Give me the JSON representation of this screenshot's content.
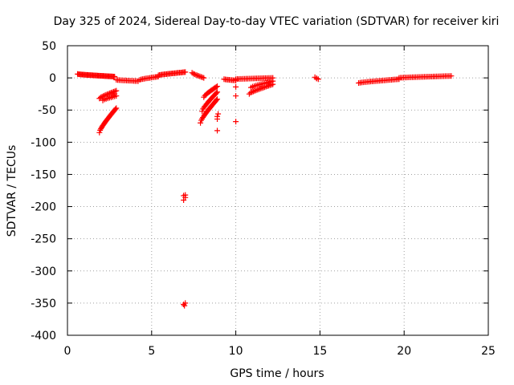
{
  "chart_data": {
    "type": "scatter",
    "title": "Day 325 of 2024, Sidereal Day-to-day VTEC variation (SDTVAR) for receiver kiri",
    "xlabel": "GPS time / hours",
    "ylabel": "SDTVAR / TECUs",
    "xlim": [
      0,
      25
    ],
    "ylim": [
      -400,
      50
    ],
    "xticks": [
      0,
      5,
      10,
      15,
      20,
      25
    ],
    "yticks": [
      50,
      0,
      -50,
      -100,
      -150,
      -200,
      -250,
      -300,
      -350,
      -400
    ],
    "grid": true,
    "marker": "plus",
    "color": "#ff0000",
    "series": [
      {
        "name": "SDTVAR",
        "segments": [
          {
            "x": [
              0.6,
              2.8
            ],
            "y": [
              6,
              2
            ],
            "n": 40
          },
          {
            "x": [
              2.9,
              4.2
            ],
            "y": [
              -3,
              -5
            ],
            "n": 16
          },
          {
            "x": [
              4.3,
              5.4
            ],
            "y": [
              -3,
              2
            ],
            "n": 14
          },
          {
            "x": [
              5.4,
              7.0
            ],
            "y": [
              4,
              9
            ],
            "n": 24
          },
          {
            "x": [
              7.4,
              8.1
            ],
            "y": [
              8,
              0
            ],
            "n": 10
          },
          {
            "x": [
              9.3,
              10.0
            ],
            "y": [
              -2,
              -4
            ],
            "n": 10
          },
          {
            "x": [
              10.0,
              12.2
            ],
            "y": [
              -2,
              0
            ],
            "n": 26
          },
          {
            "x": [
              14.7,
              14.9
            ],
            "y": [
              1,
              -2
            ],
            "n": 3
          },
          {
            "x": [
              17.3,
              19.7
            ],
            "y": [
              -8,
              -2
            ],
            "n": 28
          },
          {
            "x": [
              19.7,
              22.8
            ],
            "y": [
              0,
              3
            ],
            "n": 36
          },
          {
            "x": [
              1.9,
              2.9
            ],
            "y": [
              -85,
              -47
            ],
            "n": 26
          },
          {
            "x": [
              1.9,
              2.9
            ],
            "y": [
              -32,
              -20
            ],
            "n": 14
          },
          {
            "x": [
              2.1,
              2.9
            ],
            "y": [
              -35,
              -28
            ],
            "n": 9
          },
          {
            "x": [
              7.9,
              8.9
            ],
            "y": [
              -70,
              -33
            ],
            "n": 22
          },
          {
            "x": [
              8.0,
              8.9
            ],
            "y": [
              -52,
              -22
            ],
            "n": 18
          },
          {
            "x": [
              8.1,
              8.9
            ],
            "y": [
              -30,
              -13
            ],
            "n": 14
          },
          {
            "x": [
              10.8,
              12.2
            ],
            "y": [
              -25,
              -10
            ],
            "n": 18
          },
          {
            "x": [
              10.9,
              12.2
            ],
            "y": [
              -15,
              -5
            ],
            "n": 14
          }
        ],
        "points": [
          [
            6.9,
            -183
          ],
          [
            7.0,
            -186
          ],
          [
            6.9,
            -190
          ],
          [
            7.0,
            -182
          ],
          [
            6.9,
            -352
          ],
          [
            7.0,
            -350
          ],
          [
            6.95,
            -354
          ],
          [
            8.9,
            -60
          ],
          [
            8.9,
            -64
          ],
          [
            8.95,
            -56
          ],
          [
            8.9,
            -82
          ],
          [
            10.0,
            -28
          ],
          [
            10.0,
            -68
          ],
          [
            10.0,
            -14
          ],
          [
            14.8,
            -1
          ],
          [
            2.6,
            -30
          ],
          [
            2.7,
            -27
          ],
          [
            2.8,
            -25
          ]
        ]
      }
    ]
  }
}
